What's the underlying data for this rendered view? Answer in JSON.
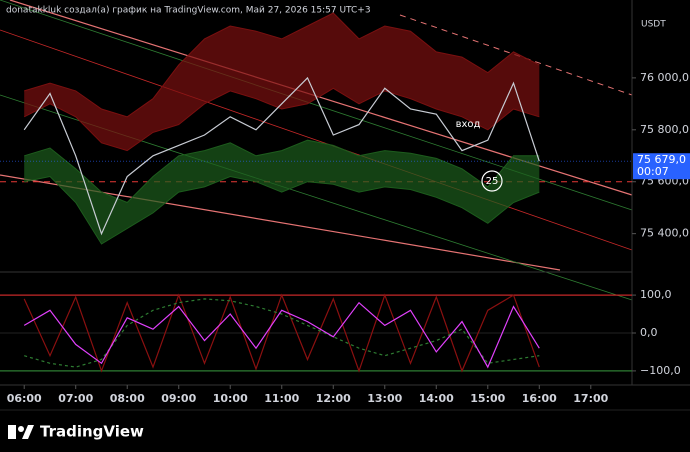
{
  "chart_data": [
    {
      "type": "line",
      "title": "donatakkluk создал(а) график на TradingView.com, Май 27, 2026 15:57 UTC+3",
      "currency": "USDT",
      "x": [
        6,
        6.5,
        7,
        7.5,
        8,
        8.5,
        9,
        9.5,
        10,
        10.5,
        11,
        11.5,
        12,
        12.5,
        13,
        13.5,
        14,
        14.5,
        15,
        15.5,
        16
      ],
      "xlim": [
        5.53,
        17.8
      ],
      "ylim": [
        75260,
        76300
      ],
      "yticks": [
        {
          "value": 75400,
          "label": "75 400,0"
        },
        {
          "value": 75600,
          "label": "75 600,0"
        },
        {
          "value": 75800,
          "label": "75 800,0"
        },
        {
          "value": 76000,
          "label": "76 000,0"
        }
      ],
      "series": [
        {
          "color": "#7a1010",
          "values": [
            75950,
            75980,
            75950,
            75880,
            75850,
            75920,
            76050,
            76150,
            76200,
            76180,
            76150,
            76200,
            76250,
            76150,
            76200,
            76180,
            76100,
            76080,
            76020,
            76100,
            76050
          ],
          "lower": [
            75850,
            75900,
            75850,
            75750,
            75720,
            75790,
            75820,
            75900,
            75950,
            75920,
            75880,
            75900,
            75960,
            75900,
            75950,
            75920,
            75880,
            75850,
            75800,
            75880,
            75850
          ]
        },
        {
          "color": "#1d5c1d",
          "values": [
            75700,
            75730,
            75650,
            75560,
            75520,
            75620,
            75700,
            75720,
            75750,
            75700,
            75720,
            75760,
            75740,
            75700,
            75720,
            75710,
            75690,
            75650,
            75580,
            75700,
            75700
          ],
          "lower": [
            75600,
            75620,
            75520,
            75360,
            75420,
            75480,
            75560,
            75580,
            75620,
            75600,
            75560,
            75600,
            75590,
            75560,
            75580,
            75570,
            75540,
            75500,
            75440,
            75520,
            75560
          ]
        },
        {
          "color": "#c8ccd4",
          "values": [
            75800,
            75940,
            75700,
            75400,
            75620,
            75700,
            75740,
            75780,
            75850,
            75800,
            75900,
            76000,
            75780,
            75820,
            75960,
            75880,
            75860,
            75720,
            75760,
            75980,
            75679
          ]
        }
      ],
      "hline": 75600,
      "last_price": {
        "value": 75679,
        "label": "75 679,0"
      },
      "countdown": "00:07",
      "annotations": [
        "вход",
        "25"
      ]
    },
    {
      "type": "line",
      "x": [
        6,
        6.5,
        7,
        7.5,
        8,
        8.5,
        9,
        9.5,
        10,
        10.5,
        11,
        11.5,
        12,
        12.5,
        13,
        13.5,
        14,
        14.5,
        15,
        15.5,
        16
      ],
      "xlim": [
        5.53,
        17.8
      ],
      "ylim": [
        -124,
        153
      ],
      "yticks": [
        {
          "value": -100,
          "label": "−100,0"
        },
        {
          "value": 0,
          "label": "0,0"
        },
        {
          "value": 100,
          "label": "100,0"
        }
      ],
      "xticks": [
        {
          "value": 6,
          "label": "06:00"
        },
        {
          "value": 7,
          "label": "07:00"
        },
        {
          "value": 8,
          "label": "08:00"
        },
        {
          "value": 9,
          "label": "09:00"
        },
        {
          "value": 10,
          "label": "10:00"
        },
        {
          "value": 11,
          "label": "11:00"
        },
        {
          "value": 12,
          "label": "12:00"
        },
        {
          "value": 13,
          "label": "13:00"
        },
        {
          "value": 14,
          "label": "14:00"
        },
        {
          "value": 15,
          "label": "15:00"
        },
        {
          "value": 16,
          "label": "16:00"
        },
        {
          "value": 17,
          "label": "17:00"
        }
      ],
      "series": [
        {
          "color": "#8b1010",
          "values": [
            90,
            -60,
            95,
            -100,
            80,
            -90,
            100,
            -80,
            95,
            -95,
            100,
            -70,
            90,
            -100,
            100,
            -80,
            95,
            -100,
            60,
            100,
            -90
          ]
        },
        {
          "color": "#2e7d32",
          "dashed": true,
          "values": [
            -60,
            -80,
            -90,
            -70,
            20,
            60,
            80,
            90,
            85,
            70,
            50,
            20,
            -10,
            -40,
            -60,
            -40,
            -20,
            10,
            -80,
            -70,
            -60
          ]
        },
        {
          "color": "#e040fb",
          "values": [
            20,
            60,
            -30,
            -80,
            40,
            10,
            70,
            -20,
            50,
            -40,
            60,
            30,
            -10,
            80,
            20,
            60,
            -50,
            30,
            -90,
            70,
            -40
          ]
        }
      ],
      "brand": "TradingView"
    }
  ]
}
